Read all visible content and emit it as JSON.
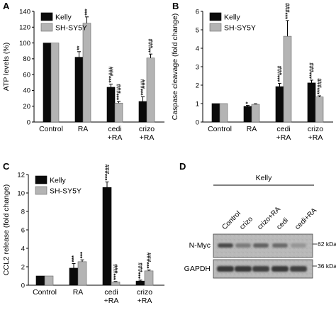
{
  "panels": [
    {
      "letter": "A"
    },
    {
      "letter": "B"
    },
    {
      "letter": "C"
    },
    {
      "letter": "D"
    }
  ],
  "colors": {
    "kelly": "#0a0a0a",
    "shsy5y": "#b4b4b4"
  },
  "chart_data": [
    {
      "type": "bar",
      "panel": "A",
      "categories": [
        [
          "Control"
        ],
        [
          "RA"
        ],
        [
          "cedi",
          "+RA"
        ],
        [
          "crizo",
          "+RA"
        ]
      ],
      "series": [
        {
          "name": "Kelly",
          "values": [
            100,
            82,
            44,
            26
          ],
          "errors": [
            0,
            7,
            4,
            6
          ],
          "sig": [
            "",
            "**",
            "***|###",
            "***|###"
          ]
        },
        {
          "name": "SH-SY5Y",
          "values": [
            100,
            125,
            24,
            81
          ],
          "errors": [
            0,
            8,
            2,
            5
          ],
          "sig": [
            "",
            "***",
            "***|###",
            "**|###"
          ]
        }
      ],
      "xlabel": "",
      "ylabel": "ATP levels (%)",
      "ylim": [
        0,
        140
      ],
      "yticks": [
        "0",
        "20",
        "40",
        "60",
        "80",
        "100",
        "120",
        "140"
      ],
      "legend": "top-left",
      "grid": false
    },
    {
      "type": "bar",
      "panel": "B",
      "categories": [
        [
          "Control"
        ],
        [
          "RA"
        ],
        [
          "cedi",
          "+RA"
        ],
        [
          "crizo",
          "+RA"
        ]
      ],
      "series": [
        {
          "name": "Kelly",
          "values": [
            1.0,
            0.85,
            1.92,
            2.12
          ],
          "errors": [
            0,
            0.05,
            0.18,
            0.15
          ],
          "sig": [
            "",
            "*",
            "***|###",
            "***|###"
          ]
        },
        {
          "name": "SH-SY5Y",
          "values": [
            1.0,
            0.96,
            4.65,
            1.36
          ],
          "errors": [
            0,
            0.03,
            0.85,
            0.06
          ],
          "sig": [
            "",
            "",
            "***|###",
            "***|###"
          ]
        }
      ],
      "xlabel": "",
      "ylabel": "Caspase cleavage (fold change)",
      "ylim": [
        0,
        6
      ],
      "yticks": [
        "0",
        "1",
        "2",
        "3",
        "4",
        "5",
        "6"
      ],
      "legend": "top-left",
      "grid": false
    },
    {
      "type": "bar",
      "panel": "C",
      "categories": [
        [
          "Control"
        ],
        [
          "RA"
        ],
        [
          "cedi",
          "+RA"
        ],
        [
          "crizo",
          "+RA"
        ]
      ],
      "series": [
        {
          "name": "Kelly",
          "values": [
            1.0,
            1.85,
            10.6,
            0.45
          ],
          "errors": [
            0,
            0.5,
            0.6,
            0.1
          ],
          "sig": [
            "",
            "***",
            "***|###",
            "***|###"
          ]
        },
        {
          "name": "SH-SY5Y",
          "values": [
            1.0,
            2.55,
            0.35,
            1.55
          ],
          "errors": [
            0,
            0.2,
            0.05,
            0.1
          ],
          "sig": [
            "",
            "***",
            "***|###",
            "***|###"
          ]
        }
      ],
      "xlabel": "",
      "ylabel": "CCL2 release (fold change)",
      "ylim": [
        0,
        12
      ],
      "yticks": [
        "0",
        "2",
        "4",
        "6",
        "8",
        "10",
        "12"
      ],
      "legend": "top-left",
      "grid": false
    }
  ],
  "blot": {
    "cell_line": "Kelly",
    "lanes": [
      "Control",
      "crizo",
      "crizo+RA",
      "cedi",
      "cedi+RA"
    ],
    "rows": [
      {
        "label": "N-Myc",
        "size": "62 kDa"
      },
      {
        "label": "GAPDH",
        "size": "36 kDa"
      }
    ],
    "nmyc_intensity": [
      0.75,
      0.45,
      0.6,
      0.55,
      0.3
    ],
    "gapdh_intensity": [
      0.85,
      0.85,
      0.8,
      0.85,
      0.8
    ]
  }
}
